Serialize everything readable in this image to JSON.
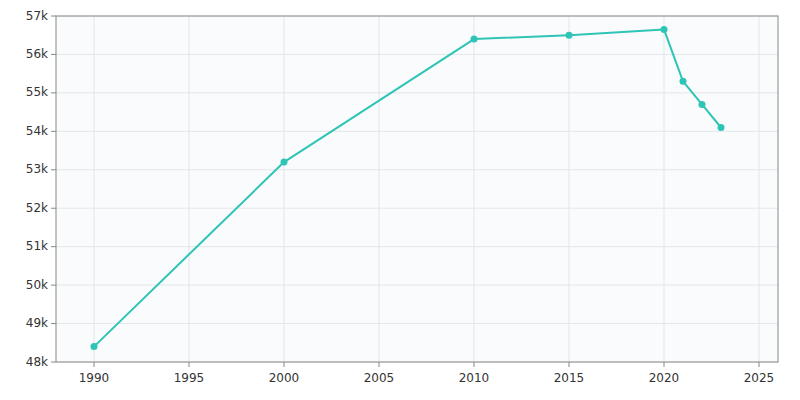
{
  "chart_data": {
    "type": "line",
    "x": [
      1990,
      2000,
      2010,
      2015,
      2020,
      2021,
      2022,
      2023
    ],
    "values": [
      48400,
      53200,
      56400,
      56500,
      56650,
      55300,
      54700,
      54100
    ],
    "color": "#2ec4b6",
    "marker": "circle",
    "xlim": [
      1988,
      2026
    ],
    "ylim": [
      48000,
      57000
    ],
    "xticks": [
      1990,
      1995,
      2000,
      2005,
      2010,
      2015,
      2020,
      2025
    ],
    "yticks": [
      {
        "value": 48000,
        "label": "48k"
      },
      {
        "value": 49000,
        "label": "49k"
      },
      {
        "value": 50000,
        "label": "50k"
      },
      {
        "value": 51000,
        "label": "51k"
      },
      {
        "value": 52000,
        "label": "52k"
      },
      {
        "value": 53000,
        "label": "53k"
      },
      {
        "value": 54000,
        "label": "54k"
      },
      {
        "value": 55000,
        "label": "55k"
      },
      {
        "value": 56000,
        "label": "56k"
      },
      {
        "value": 57000,
        "label": "57k"
      }
    ],
    "grid": true
  }
}
